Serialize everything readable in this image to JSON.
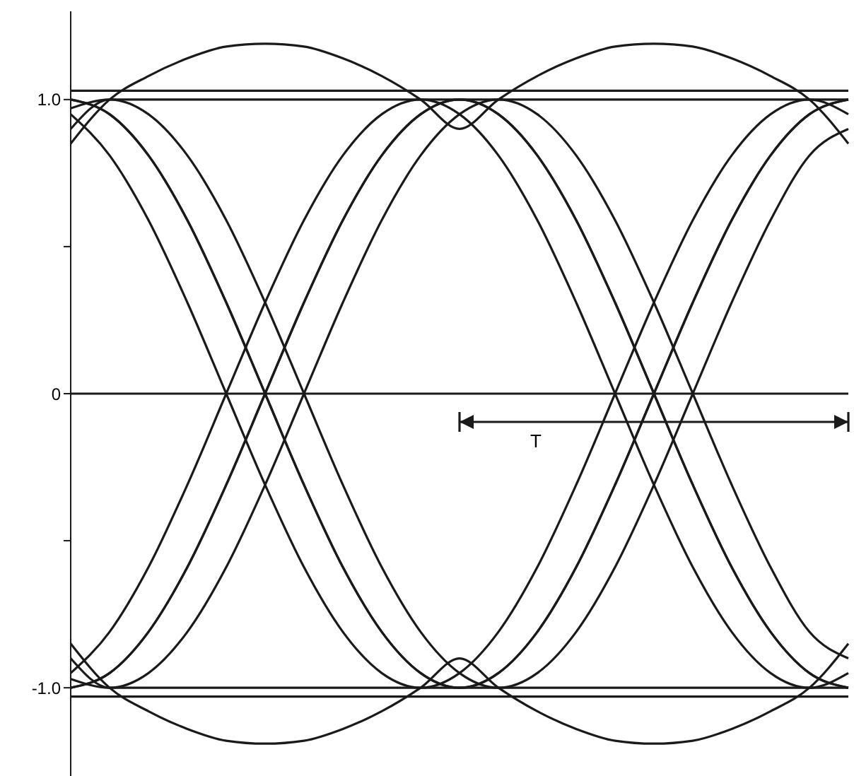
{
  "chart_data": {
    "type": "line",
    "categories": [
      null,
      null,
      null,
      null,
      null,
      null,
      null,
      null,
      null,
      null,
      null,
      null,
      null,
      null,
      null,
      null,
      null,
      null,
      null,
      null,
      null
    ],
    "series": [
      {
        "color": "#1a1a1a",
        "values": [
          1,
          0.95,
          0.81,
          0.59,
          0.31,
          0,
          -0.31,
          -0.59,
          -0.81,
          -0.95,
          -1,
          -0.95,
          -0.81,
          -0.59,
          -0.31,
          0,
          0.31,
          0.59,
          0.81,
          0.95,
          1
        ]
      },
      {
        "color": "#1a1a1a",
        "values": [
          -1,
          -0.95,
          -0.81,
          -0.59,
          -0.31,
          0,
          0.31,
          0.59,
          0.81,
          0.95,
          1,
          0.95,
          0.81,
          0.59,
          0.31,
          0,
          -0.31,
          -0.59,
          -0.81,
          -0.95,
          -1
        ]
      },
      {
        "color": "#1a1a1a",
        "values": [
          1.03,
          1.03,
          1.03,
          1.03,
          1.03,
          1.03,
          1.03,
          1.03,
          1.03,
          1.03,
          1.03,
          1.03,
          1.03,
          1.03,
          1.03,
          1.03,
          1.03,
          1.03,
          1.03,
          1.03,
          1.03
        ]
      },
      {
        "color": "#1a1a1a",
        "values": [
          -1.03,
          -1.03,
          -1.03,
          -1.03,
          -1.03,
          -1.03,
          -1.03,
          -1.03,
          -1.03,
          -1.03,
          -1.03,
          -1.03,
          -1.03,
          -1.03,
          -1.03,
          -1.03,
          -1.03,
          -1.03,
          -1.03,
          -1.03,
          -1.03
        ]
      },
      {
        "color": "#1a1a1a",
        "values": [
          0.85,
          1.0,
          1.08,
          1.14,
          1.18,
          1.19,
          1.18,
          1.14,
          1.08,
          1.0,
          0.9,
          1.0,
          1.08,
          1.14,
          1.18,
          1.19,
          1.18,
          1.14,
          1.08,
          1.0,
          0.85
        ]
      },
      {
        "color": "#1a1a1a",
        "values": [
          -0.85,
          -1.0,
          -1.08,
          -1.14,
          -1.18,
          -1.19,
          -1.18,
          -1.14,
          -1.08,
          -1.0,
          -0.9,
          -1.0,
          -1.08,
          -1.14,
          -1.18,
          -1.19,
          -1.18,
          -1.14,
          -1.08,
          -1.0,
          -0.85
        ]
      },
      {
        "color": "#1a1a1a",
        "values": [
          0.95,
          0.81,
          0.59,
          0.31,
          0,
          -0.31,
          -0.59,
          -0.81,
          -0.95,
          -1,
          -0.95,
          -0.81,
          -0.59,
          -0.31,
          0,
          0.31,
          0.59,
          0.81,
          0.95,
          1,
          0.95
        ]
      },
      {
        "color": "#1a1a1a",
        "values": [
          0.9,
          1,
          0.95,
          0.81,
          0.59,
          0.31,
          0,
          -0.31,
          -0.59,
          -0.81,
          -0.95,
          -1,
          -0.95,
          -0.81,
          -0.59,
          -0.31,
          0,
          0.31,
          0.59,
          0.81,
          0.9
        ]
      },
      {
        "color": "#1a1a1a",
        "values": [
          -0.95,
          -0.81,
          -0.59,
          -0.31,
          0,
          0.31,
          0.59,
          0.81,
          0.95,
          1,
          0.95,
          0.81,
          0.59,
          0.31,
          0,
          -0.31,
          -0.59,
          -0.81,
          -0.95,
          -1,
          -0.95
        ]
      },
      {
        "color": "#1a1a1a",
        "values": [
          -0.9,
          -1,
          -0.95,
          -0.81,
          -0.59,
          -0.31,
          0,
          0.31,
          0.59,
          0.81,
          0.95,
          1,
          0.95,
          0.81,
          0.59,
          0.31,
          0,
          -0.31,
          -0.59,
          -0.81,
          -0.9
        ]
      },
      {
        "color": "#1a1a1a",
        "values": [
          1,
          0.95,
          0.81,
          0.59,
          0.31,
          0,
          -0.31,
          -0.59,
          -0.81,
          -0.95,
          -1,
          -1,
          -1,
          -1,
          -1,
          -1,
          -1,
          -1,
          -1,
          -1,
          -1
        ]
      },
      {
        "color": "#1a1a1a",
        "values": [
          -1,
          -0.95,
          -0.81,
          -0.59,
          -0.31,
          0,
          0.31,
          0.59,
          0.81,
          0.95,
          1,
          1,
          1,
          1,
          1,
          1,
          1,
          1,
          1,
          1,
          1
        ]
      },
      {
        "color": "#1a1a1a",
        "values": [
          0.97,
          1,
          1,
          1,
          1,
          1,
          1,
          1,
          1,
          1,
          1,
          0.95,
          0.81,
          0.59,
          0.31,
          0,
          -0.31,
          -0.59,
          -0.81,
          -0.95,
          -1
        ]
      },
      {
        "color": "#1a1a1a",
        "values": [
          -0.97,
          -1,
          -1,
          -1,
          -1,
          -1,
          -1,
          -1,
          -1,
          -1,
          -1,
          -0.95,
          -0.81,
          -0.59,
          -0.31,
          0,
          0.31,
          0.59,
          0.81,
          0.95,
          1
        ]
      }
    ],
    "ylim": [
      -1.3,
      1.3
    ],
    "yticks": [
      {
        "value": 1,
        "label": "1.0"
      },
      {
        "value": 0.5,
        "label": null
      },
      0,
      {
        "value": -0.5,
        "label": null
      },
      {
        "value": -1,
        "label": "-1.0"
      }
    ],
    "ref_lines": [
      {
        "axis": "y",
        "value": 0,
        "color": "#1a1a1a"
      }
    ],
    "annotations": [
      "T"
    ],
    "legend": false,
    "grid": false,
    "marker": "none",
    "line_style": "solid"
  }
}
